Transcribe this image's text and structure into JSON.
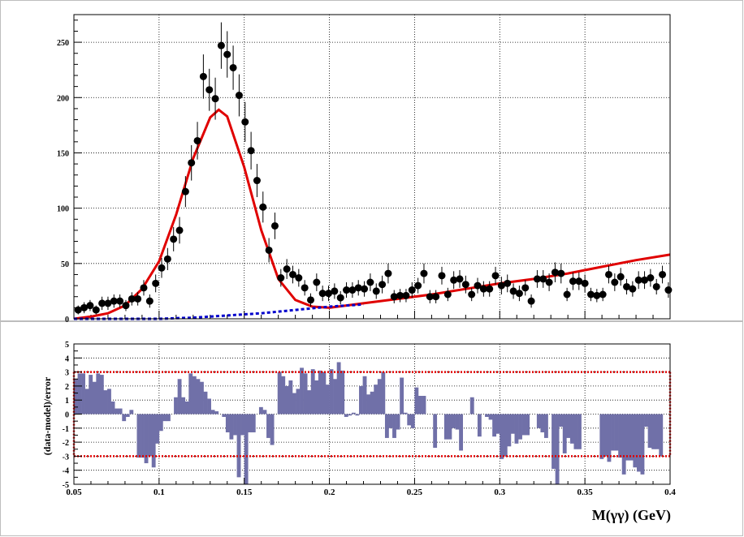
{
  "chart_data": [
    {
      "type": "scatter",
      "panel": "top",
      "xlim": [
        0.05,
        0.4
      ],
      "ylim": [
        0,
        275
      ],
      "yticks": [
        "50",
        "100",
        "150",
        "200",
        "250"
      ],
      "grid": true,
      "series": [
        {
          "kind": "points-with-errors",
          "color": "#000000",
          "x": [
            0.0525,
            0.056,
            0.0595,
            0.063,
            0.0665,
            0.07,
            0.0735,
            0.077,
            0.0805,
            0.084,
            0.0875,
            0.091,
            0.0945,
            0.098,
            0.1015,
            0.105,
            0.1085,
            0.112,
            0.1155,
            0.119,
            0.1225,
            0.126,
            0.1295,
            0.133,
            0.1365,
            0.14,
            0.1435,
            0.147,
            0.1505,
            0.154,
            0.1575,
            0.161,
            0.1645,
            0.168,
            0.1715,
            0.175,
            0.1785,
            0.182,
            0.1855,
            0.189,
            0.1925,
            0.196,
            0.1995,
            0.203,
            0.2065,
            0.21,
            0.2135,
            0.217,
            0.2205,
            0.224,
            0.2275,
            0.231,
            0.2345,
            0.238,
            0.2415,
            0.245,
            0.2485,
            0.252,
            0.2555,
            0.259,
            0.2625,
            0.266,
            0.2695,
            0.273,
            0.2765,
            0.28,
            0.2835,
            0.287,
            0.2905,
            0.294,
            0.2975,
            0.301,
            0.3045,
            0.308,
            0.3115,
            0.315,
            0.3185,
            0.322,
            0.3255,
            0.329,
            0.3325,
            0.336,
            0.3395,
            0.343,
            0.3465,
            0.35,
            0.3535,
            0.357,
            0.3605,
            0.364,
            0.3675,
            0.371,
            0.3745,
            0.378,
            0.3815,
            0.385,
            0.3885,
            0.392,
            0.3955,
            0.399
          ],
          "y": [
            8,
            10,
            12,
            8,
            14,
            14,
            16,
            16,
            12,
            18,
            18,
            28,
            16,
            32,
            46,
            54,
            72,
            80,
            115,
            141,
            161,
            219,
            207,
            199,
            247,
            239,
            227,
            202,
            178,
            152,
            125,
            101,
            62,
            84,
            37,
            45,
            40,
            37,
            28,
            17,
            33,
            23,
            23,
            25,
            19,
            26,
            26,
            28,
            27,
            33,
            25,
            31,
            41,
            20,
            21,
            21,
            26,
            30,
            41,
            20,
            20,
            39,
            22,
            35,
            36,
            31,
            22,
            30,
            27,
            27,
            39,
            30,
            32,
            25,
            23,
            28,
            16,
            36,
            36,
            33,
            42,
            41,
            22,
            34,
            34,
            32,
            22,
            21,
            22,
            40,
            33,
            38,
            29,
            27,
            35,
            35,
            37,
            29,
            40,
            26
          ],
          "yerr": [
            4,
            5,
            5,
            4,
            6,
            6,
            6,
            6,
            5,
            6,
            6,
            7,
            6,
            8,
            9,
            10,
            11,
            12,
            14,
            16,
            17,
            20,
            19,
            19,
            21,
            21,
            20,
            19,
            18,
            17,
            15,
            14,
            11,
            12,
            8,
            9,
            8,
            8,
            7,
            6,
            8,
            7,
            7,
            7,
            6,
            7,
            7,
            7,
            7,
            8,
            7,
            8,
            9,
            6,
            6,
            6,
            7,
            7,
            9,
            6,
            6,
            8,
            6,
            8,
            8,
            8,
            6,
            7,
            7,
            7,
            8,
            8,
            8,
            7,
            7,
            7,
            6,
            8,
            8,
            8,
            9,
            9,
            6,
            8,
            8,
            8,
            6,
            6,
            6,
            8,
            8,
            8,
            7,
            7,
            8,
            8,
            8,
            7,
            8,
            7
          ]
        },
        {
          "kind": "curve",
          "name": "",
          "color": "#e00000",
          "x": [
            0.05,
            0.06,
            0.07,
            0.08,
            0.09,
            0.1,
            0.11,
            0.12,
            0.13,
            0.135,
            0.14,
            0.15,
            0.16,
            0.17,
            0.18,
            0.19,
            0.2,
            0.22,
            0.24,
            0.26,
            0.28,
            0.3,
            0.32,
            0.34,
            0.36,
            0.38,
            0.4
          ],
          "y": [
            0,
            2,
            5,
            12,
            27,
            52,
            94,
            145,
            182,
            189,
            183,
            137,
            80,
            36,
            17,
            11,
            10,
            14,
            18,
            22,
            27,
            32,
            36,
            41,
            47,
            53,
            58
          ]
        },
        {
          "kind": "curve",
          "name": "",
          "color": "#0000cc",
          "dash": true,
          "x": [
            0.05,
            0.06,
            0.08,
            0.1,
            0.12,
            0.14,
            0.16,
            0.18,
            0.2,
            0.22
          ],
          "y": [
            0,
            0,
            0,
            0,
            1,
            3,
            5,
            8,
            11,
            13
          ]
        }
      ]
    },
    {
      "type": "bar",
      "panel": "bottom",
      "xlim": [
        0.05,
        0.4
      ],
      "ylim": [
        -5,
        5
      ],
      "yticks": [
        "-5",
        "-4",
        "-3",
        "-2",
        "-1",
        "0",
        "1",
        "2",
        "3",
        "4",
        "5"
      ],
      "xticks": [
        "0.05",
        "0.1",
        "0.15",
        "0.2",
        "0.25",
        "0.3",
        "0.35",
        "0.4"
      ],
      "ylabel": "(data-model)/error",
      "xlabel": "M(γγ) (GeV)",
      "bar_color": "#7070a8",
      "reference_lines": [
        3,
        -3
      ],
      "reference_color": "#e00000",
      "grid": true,
      "values": [
        2.5,
        2.9,
        2.9,
        1.8,
        2.8,
        2.3,
        2.9,
        2.8,
        1.7,
        1.8,
        0.9,
        0.4,
        0.4,
        -0.5,
        -0.2,
        0.3,
        0,
        -3.1,
        -3.1,
        -3.5,
        -3.0,
        -3.8,
        -2.1,
        -1.2,
        -0.5,
        -0.5,
        0,
        1.2,
        2.5,
        1.2,
        0.9,
        2.9,
        2.7,
        2.5,
        2.3,
        1.6,
        1.1,
        0.3,
        0.2,
        0,
        -0.2,
        -1.3,
        -1.8,
        -1.5,
        -4.5,
        -1.5,
        -5.0,
        -1.3,
        -1.3,
        0,
        0.5,
        0.3,
        -1.7,
        -2.2,
        0,
        3.0,
        2.7,
        2.0,
        2.4,
        1.5,
        1.8,
        3.3,
        2.9,
        1.7,
        3.2,
        2.4,
        3.1,
        3.0,
        2.1,
        3.2,
        2.5,
        3.7,
        3.1,
        -0.2,
        -0.1,
        0.1,
        -0.1,
        2.0,
        2.7,
        1.4,
        1.6,
        2.1,
        2.5,
        3.0,
        -1.7,
        -1.0,
        -1.7,
        -1.1,
        2.6,
        0.1,
        -0.8,
        -1.0,
        1.9,
        1.3,
        1.3,
        0,
        0,
        -2.4,
        0,
        0,
        -1.8,
        -1.8,
        -1.0,
        -1.1,
        -2.6,
        0,
        0,
        1.2,
        0,
        -1.6,
        0,
        -0.2,
        -0.4,
        -1.6,
        -1.4,
        -3.2,
        -3.0,
        -2.3,
        -1.4,
        -2.1,
        -1.8,
        -1.5,
        -1.5,
        0,
        0,
        -1.0,
        -1.3,
        -1.7,
        0,
        -3.9,
        -5.0,
        -0.9,
        -2.8,
        -1.7,
        -2.1,
        -2.5,
        -2.5,
        0,
        0,
        0,
        0,
        0,
        -3.2,
        -3.0,
        -3.4,
        -2.6,
        -2.6,
        -3.1,
        -4.3,
        -3.3,
        -3.3,
        -3.8,
        -4.1,
        -4.3,
        -0.9,
        -2.4,
        -2.5,
        -2.5,
        -3.0,
        0,
        0
      ]
    }
  ]
}
